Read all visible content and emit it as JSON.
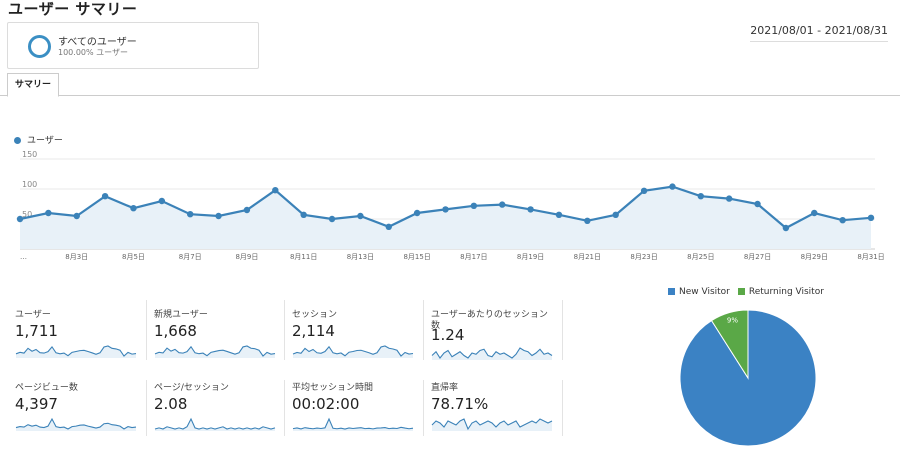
{
  "header": {
    "title": "ユーザー サマリー",
    "segment_name": "すべてのユーザー",
    "segment_sub": "100.00% ユーザー",
    "date_range": "2021/08/01 - 2021/08/31"
  },
  "tabs": [
    {
      "label": "サマリー"
    }
  ],
  "main_chart_legend": "ユーザー",
  "colors": {
    "accent": "#3b82b8",
    "pie_new": "#3b82c4",
    "pie_returning": "#5aa847"
  },
  "chart_data": [
    {
      "type": "line",
      "title": "",
      "series": [
        {
          "name": "ユーザー",
          "values": [
            50,
            60,
            55,
            88,
            68,
            80,
            58,
            55,
            65,
            98,
            57,
            50,
            55,
            37,
            60,
            66,
            72,
            74,
            66,
            57,
            47,
            57,
            97,
            104,
            88,
            84,
            75,
            35,
            60,
            48,
            52
          ]
        }
      ],
      "x_tick_labels": [
        "…",
        "8月3日",
        "8月5日",
        "8月7日",
        "8月9日",
        "8月11日",
        "8月13日",
        "8月15日",
        "8月17日",
        "8月19日",
        "8月21日",
        "8月23日",
        "8月25日",
        "8月27日",
        "8月29日",
        "8月31日"
      ],
      "y_tick_labels": [
        "150",
        "100",
        "50"
      ],
      "ylim": [
        0,
        150
      ],
      "grid": true
    },
    {
      "type": "pie",
      "labels": [
        "New Visitor",
        "Returning Visitor"
      ],
      "values": [
        91,
        9
      ],
      "data_labels": [
        "91%",
        "9%"
      ],
      "legend_position": "top"
    }
  ],
  "metrics": [
    {
      "label": "ユーザー",
      "value": "1,711",
      "spark": [
        50,
        60,
        55,
        88,
        68,
        80,
        58,
        55,
        65,
        98,
        57,
        50,
        55,
        37,
        60,
        66,
        72,
        74,
        66,
        57,
        47,
        57,
        97,
        104,
        88,
        84,
        75,
        35,
        60,
        48,
        52
      ]
    },
    {
      "label": "新規ユーザー",
      "value": "1,668",
      "spark": [
        48,
        58,
        54,
        86,
        66,
        78,
        56,
        53,
        63,
        95,
        55,
        49,
        53,
        36,
        58,
        64,
        70,
        72,
        64,
        55,
        46,
        55,
        94,
        100,
        85,
        82,
        72,
        34,
        58,
        46,
        50
      ]
    },
    {
      "label": "セッション",
      "value": "2,114",
      "spark": [
        60,
        72,
        66,
        105,
        80,
        96,
        70,
        66,
        80,
        118,
        70,
        62,
        68,
        46,
        74,
        80,
        88,
        90,
        80,
        70,
        58,
        70,
        116,
        124,
        106,
        100,
        90,
        44,
        72,
        60,
        64
      ]
    },
    {
      "label": "ユーザーあたりのセッション数",
      "value": "1.24",
      "spark": [
        1.22,
        1.25,
        1.2,
        1.24,
        1.26,
        1.21,
        1.23,
        1.25,
        1.22,
        1.2,
        1.24,
        1.23,
        1.26,
        1.27,
        1.22,
        1.21,
        1.25,
        1.23,
        1.24,
        1.22,
        1.2,
        1.23,
        1.28,
        1.26,
        1.25,
        1.22,
        1.24,
        1.27,
        1.23,
        1.24,
        1.22
      ]
    },
    {
      "label": "ページビュー数",
      "value": "4,397",
      "spark": [
        120,
        140,
        130,
        180,
        150,
        170,
        130,
        120,
        150,
        300,
        140,
        120,
        130,
        90,
        140,
        150,
        170,
        175,
        150,
        130,
        110,
        130,
        200,
        210,
        180,
        170,
        150,
        90,
        140,
        120,
        130
      ]
    },
    {
      "label": "ページ/セッション",
      "value": "2.08",
      "spark": [
        2.0,
        2.1,
        2.0,
        2.2,
        2.1,
        2.0,
        2.1,
        2.0,
        2.2,
        2.9,
        2.1,
        2.0,
        2.1,
        2.0,
        2.1,
        2.0,
        2.1,
        2.2,
        2.0,
        2.1,
        2.0,
        2.1,
        2.0,
        2.1,
        2.0,
        2.1,
        2.0,
        2.2,
        2.1,
        2.0,
        2.1
      ]
    },
    {
      "label": "平均セッション時間",
      "value": "00:02:00",
      "spark": [
        110,
        120,
        105,
        125,
        115,
        108,
        118,
        112,
        122,
        260,
        115,
        108,
        116,
        104,
        120,
        112,
        118,
        125,
        110,
        114,
        106,
        118,
        120,
        126,
        110,
        116,
        112,
        130,
        118,
        108,
        116
      ]
    },
    {
      "label": "直帰率",
      "value": "78.71%",
      "spark": [
        78,
        80,
        79,
        77,
        80,
        79,
        78,
        80,
        81,
        76,
        79,
        80,
        78,
        79,
        80,
        79,
        77,
        79,
        80,
        78,
        79,
        80,
        77,
        78,
        79,
        80,
        79,
        81,
        80,
        79,
        80
      ]
    }
  ]
}
